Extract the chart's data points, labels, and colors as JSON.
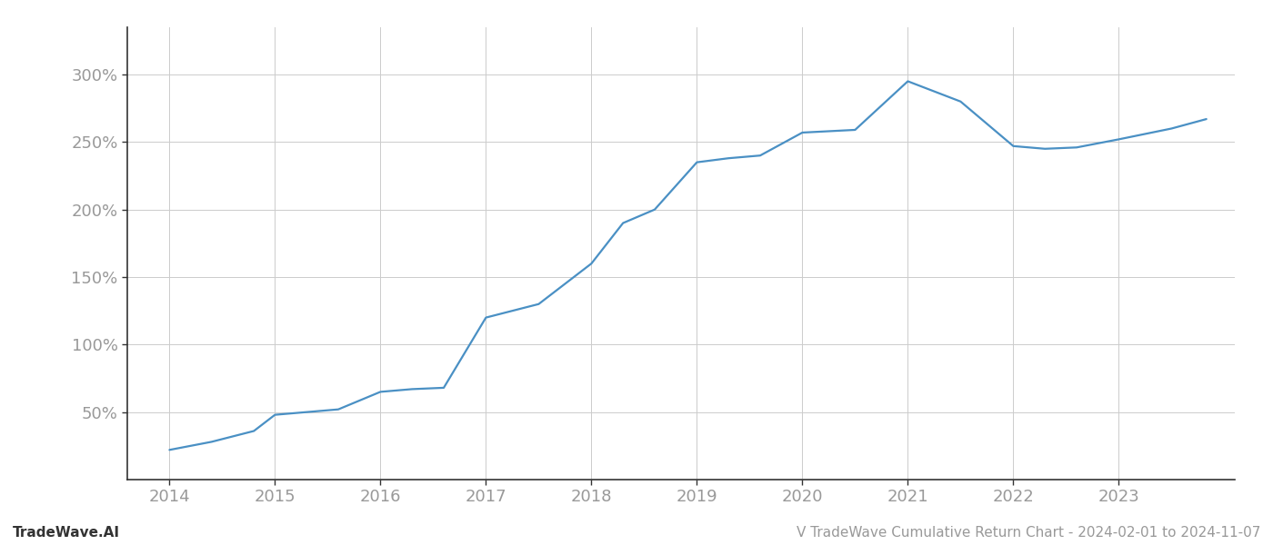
{
  "title": "",
  "xlabel": "",
  "ylabel": "",
  "footer_left": "TradeWave.AI",
  "footer_right": "V TradeWave Cumulative Return Chart - 2024-02-01 to 2024-11-07",
  "line_color": "#4a90c4",
  "background_color": "#ffffff",
  "grid_color": "#cccccc",
  "x_values": [
    2014.0,
    2014.4,
    2014.8,
    2015.0,
    2015.3,
    2015.6,
    2016.0,
    2016.3,
    2016.6,
    2017.0,
    2017.5,
    2018.0,
    2018.3,
    2018.6,
    2019.0,
    2019.3,
    2019.6,
    2020.0,
    2020.5,
    2021.0,
    2021.5,
    2022.0,
    2022.3,
    2022.6,
    2023.0,
    2023.5,
    2023.83
  ],
  "y_values": [
    22,
    28,
    36,
    48,
    50,
    52,
    65,
    67,
    68,
    120,
    130,
    160,
    190,
    200,
    235,
    238,
    240,
    257,
    259,
    295,
    280,
    247,
    245,
    246,
    252,
    260,
    267
  ],
  "xlim": [
    2013.6,
    2024.1
  ],
  "ylim": [
    0,
    335
  ],
  "yticks": [
    50,
    100,
    150,
    200,
    250,
    300
  ],
  "xticks": [
    2014,
    2015,
    2016,
    2017,
    2018,
    2019,
    2020,
    2021,
    2022,
    2023
  ],
  "tick_color": "#999999",
  "axis_color": "#333333",
  "tick_fontsize": 13,
  "footer_fontsize": 11,
  "line_width": 1.6
}
